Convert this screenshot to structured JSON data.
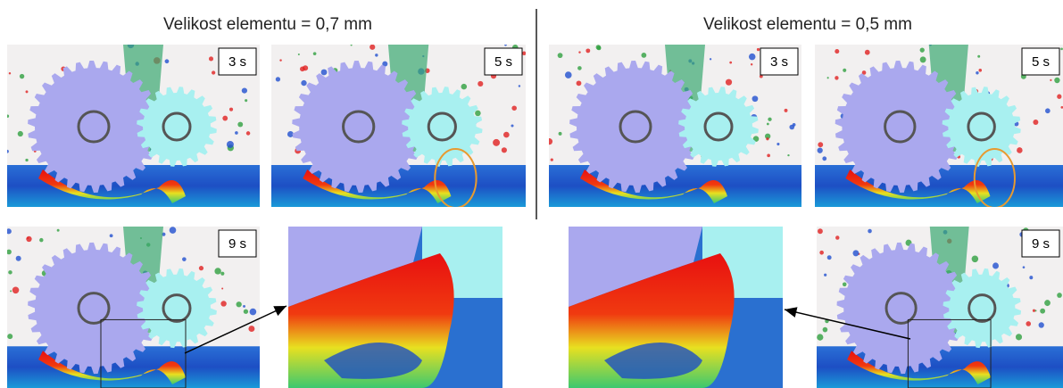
{
  "headings": [
    "Velikost elementu = 0,7 mm",
    "Velikost elementu = 0,5 mm"
  ],
  "panels": [
    {
      "label": "3 s"
    },
    {
      "label": "5 s"
    },
    {
      "label": "3 s"
    },
    {
      "label": "5 s"
    },
    {
      "label": "9 s"
    },
    {
      "label": "9 s"
    }
  ]
}
